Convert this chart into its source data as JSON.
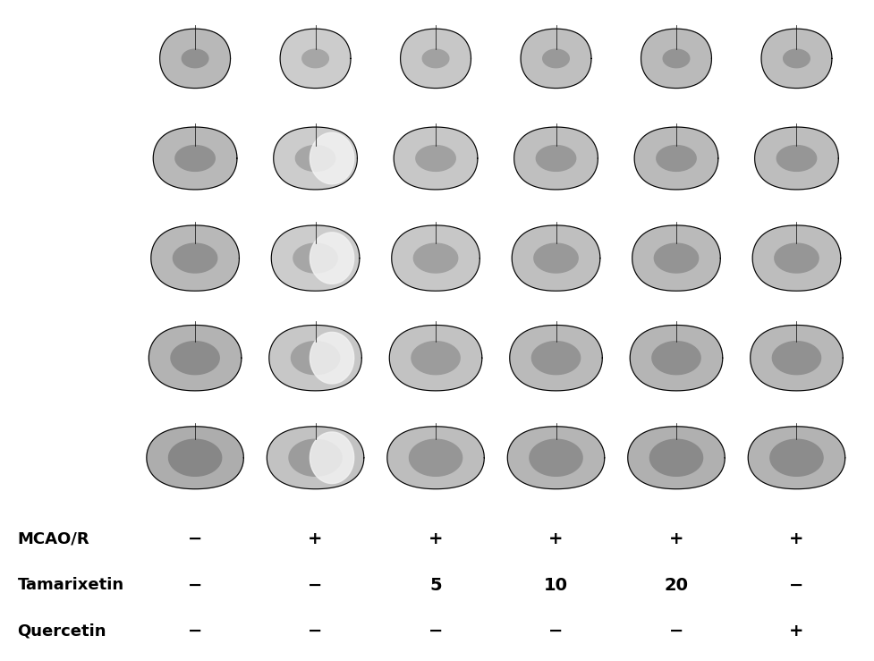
{
  "background_color": "#ffffff",
  "panel_bg": "#000000",
  "n_cols": 6,
  "n_rows": 5,
  "figure_width": 9.78,
  "figure_height": 7.39,
  "label_rows": [
    {
      "label": "MCAO/R",
      "values": [
        "−",
        "+",
        "+",
        "+",
        "+",
        "+"
      ]
    },
    {
      "label": "Tamarixetin",
      "values": [
        "−",
        "−",
        "5",
        "10",
        "20",
        "−"
      ]
    },
    {
      "label": "Quercetin",
      "values": [
        "−",
        "−",
        "−",
        "−",
        "−",
        "+"
      ]
    }
  ],
  "label_fontsize": 13,
  "value_fontsize": 13,
  "label_bold": true
}
